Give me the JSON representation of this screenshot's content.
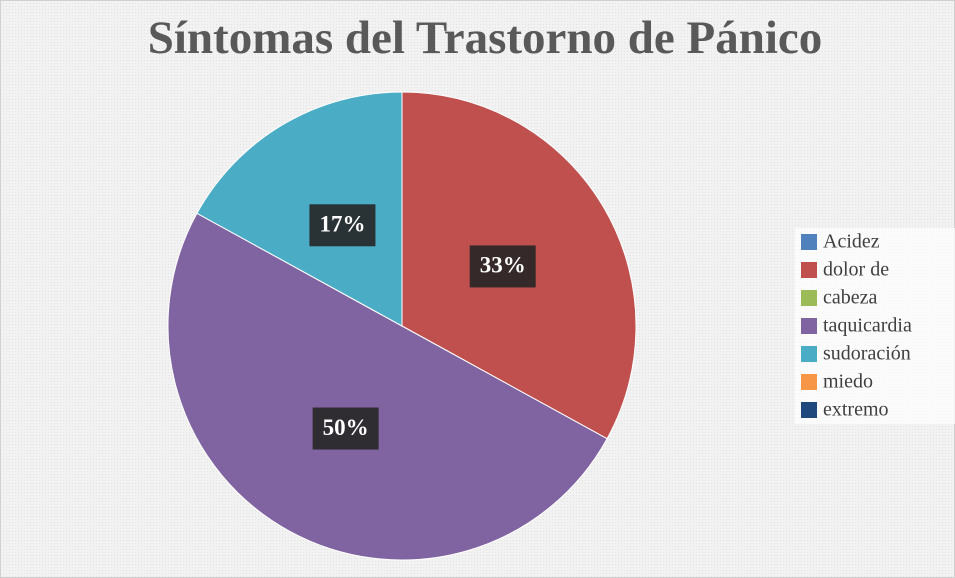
{
  "chart_data": {
    "type": "pie",
    "title": "Síntomas del Trastorno de Pánico",
    "categories": [
      "Acidez",
      "dolor de",
      "cabeza",
      "taquicardia",
      "sudoración",
      "miedo",
      "extremo"
    ],
    "values": [
      0,
      33,
      0,
      50,
      17,
      0,
      0
    ],
    "value_labels": [
      null,
      "33%",
      null,
      "50%",
      "17%",
      null,
      null
    ],
    "colors": [
      "#4f81bd",
      "#c0504d",
      "#9bbb59",
      "#8064a2",
      "#4bacc6",
      "#f79646",
      "#1f497d"
    ],
    "legend": "right"
  }
}
